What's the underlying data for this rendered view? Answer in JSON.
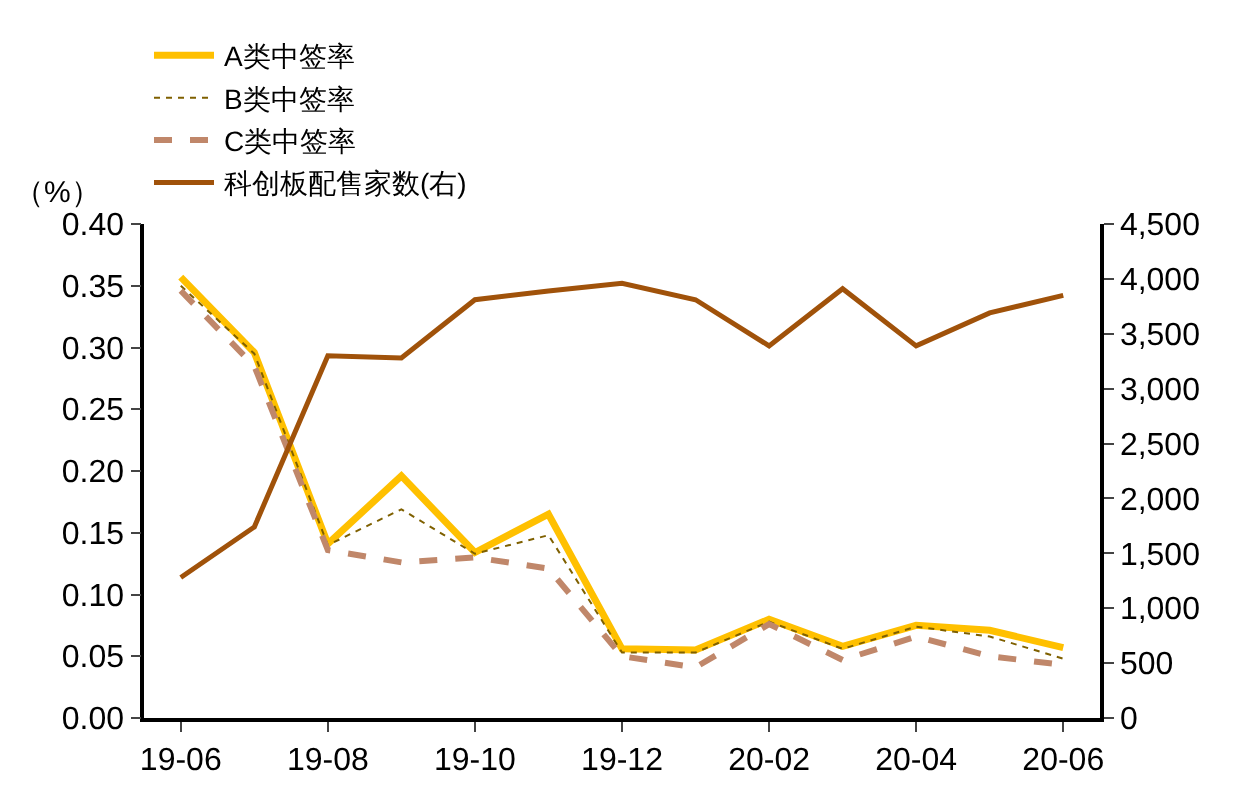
{
  "chart_data": {
    "type": "line",
    "ylabel": "（%）",
    "categories": [
      "19-06",
      null,
      "19-08",
      null,
      "19-10",
      null,
      "19-12",
      null,
      "20-02",
      null,
      "20-04",
      null,
      "20-06"
    ],
    "ylim": [
      0,
      0.4
    ],
    "yticks": [
      {
        "value": 0,
        "label": "0.00"
      },
      {
        "value": 0.05,
        "label": "0.05"
      },
      {
        "value": 0.1,
        "label": "0.10"
      },
      {
        "value": 0.15,
        "label": "0.15"
      },
      {
        "value": 0.2,
        "label": "0.20"
      },
      {
        "value": 0.25,
        "label": "0.25"
      },
      {
        "value": 0.3,
        "label": "0.30"
      },
      {
        "value": 0.35,
        "label": "0.35"
      },
      {
        "value": 0.4,
        "label": "0.40"
      }
    ],
    "y2lim": [
      0,
      4500
    ],
    "y2ticks": [
      0,
      {
        "value": 500,
        "label": "500"
      },
      {
        "value": 1000,
        "label": "1,000"
      },
      {
        "value": 1500,
        "label": "1,500"
      },
      {
        "value": 2000,
        "label": "2,000"
      },
      {
        "value": 2500,
        "label": "2,500"
      },
      {
        "value": 3000,
        "label": "3,000"
      },
      {
        "value": 3500,
        "label": "3,500"
      },
      {
        "value": 4000,
        "label": "4,000"
      },
      {
        "value": 4500,
        "label": "4,500"
      }
    ],
    "legend": "top",
    "series": [
      {
        "name": "A类中签率",
        "color": "#ffc000",
        "line_style": "solid",
        "values": [
          0.357,
          0.296,
          0.141,
          0.196,
          0.134,
          0.165,
          0.056,
          0.055,
          0.08,
          0.058,
          0.075,
          0.071,
          0.057
        ]
      },
      {
        "name": "B类中签率",
        "color": "#7f6000",
        "line_style": "dotted",
        "values": [
          0.35,
          0.295,
          0.14,
          0.169,
          0.133,
          0.148,
          0.053,
          0.053,
          0.078,
          0.056,
          0.074,
          0.066,
          0.048
        ]
      },
      {
        "name": "C类中签率",
        "color": "#c0876a",
        "line_style": "dashed",
        "values": [
          0.346,
          0.285,
          0.136,
          0.126,
          0.13,
          0.121,
          0.05,
          0.041,
          0.076,
          0.047,
          0.066,
          0.05,
          0.043
        ]
      },
      {
        "name": "科创板配售家数(右)",
        "color": "#a0520a",
        "line_style": "solid",
        "axis": "y2",
        "values": [
          1280,
          1740,
          3300,
          3280,
          3810,
          3890,
          3960,
          3810,
          3390,
          3910,
          3390,
          3690,
          3850
        ]
      }
    ]
  }
}
